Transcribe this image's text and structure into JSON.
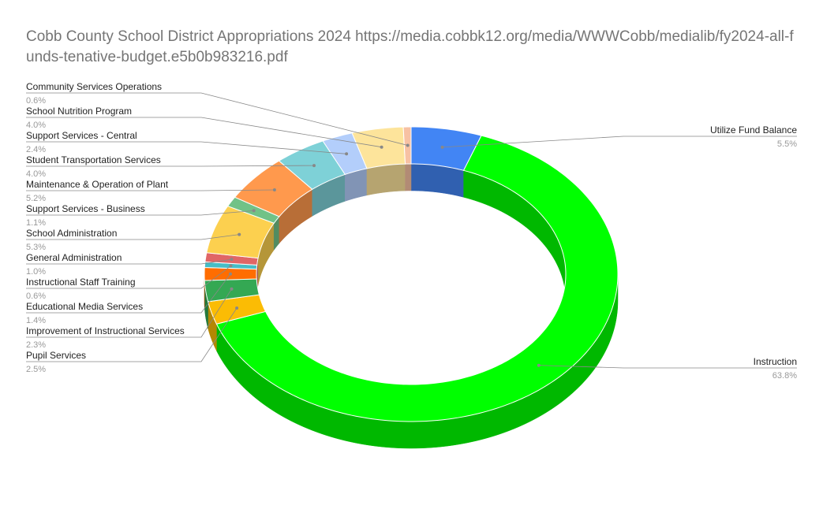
{
  "chart_data": {
    "type": "pie",
    "variant": "3d-donut",
    "title": "Cobb County School District Appropriations 2024 https://media.cobbk12.org/media/WWWCobb/medialib/fy2024-all-funds-tenative-budget.e5b0b983216.pdf",
    "slices": [
      {
        "label": "Utilize Fund Balance",
        "percent_label": "5.5%",
        "value": 5.5,
        "color": "#4285f4"
      },
      {
        "label": "Instruction",
        "percent_label": "63.8%",
        "value": 63.8,
        "color": "#00ff00"
      },
      {
        "label": "Pupil Services",
        "percent_label": "2.5%",
        "value": 2.5,
        "color": "#fbbc04"
      },
      {
        "label": "Improvement of Instructional Services",
        "percent_label": "2.3%",
        "value": 2.3,
        "color": "#34a853"
      },
      {
        "label": "Educational Media Services",
        "percent_label": "1.4%",
        "value": 1.4,
        "color": "#ff6d01"
      },
      {
        "label": "Instructional Staff Training",
        "percent_label": "0.6%",
        "value": 0.6,
        "color": "#46bdc6"
      },
      {
        "label": "General Administration",
        "percent_label": "1.0%",
        "value": 1.0,
        "color": "#e06666"
      },
      {
        "label": "School Administration",
        "percent_label": "5.3%",
        "value": 5.3,
        "color": "#fcd04f"
      },
      {
        "label": "Support Services - Business",
        "percent_label": "1.1%",
        "value": 1.1,
        "color": "#71c287"
      },
      {
        "label": "Maintenance & Operation of Plant",
        "percent_label": "5.2%",
        "value": 5.2,
        "color": "#ff994d"
      },
      {
        "label": "Student Transportation Services",
        "percent_label": "4.0%",
        "value": 4.0,
        "color": "#7ed1d7"
      },
      {
        "label": "Support Services - Central",
        "percent_label": "2.4%",
        "value": 2.4,
        "color": "#b3cefb"
      },
      {
        "label": "School Nutrition Program",
        "percent_label": "4.0%",
        "value": 4.0,
        "color": "#fde49b"
      },
      {
        "label": "Community Services Operations",
        "percent_label": "0.6%",
        "value": 0.6,
        "color": "#f7c1a3"
      }
    ]
  }
}
